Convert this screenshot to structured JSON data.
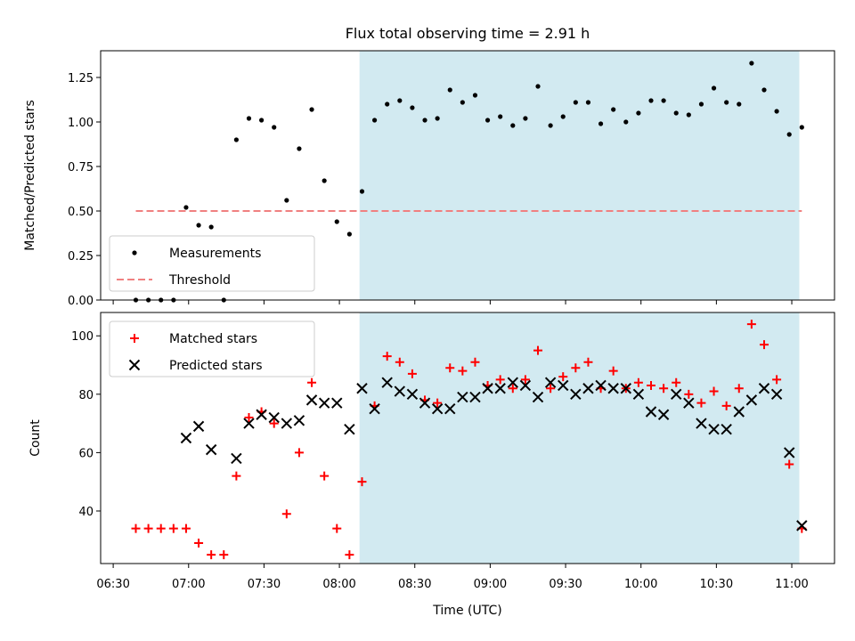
{
  "chart_data": {
    "title": "Flux total observing time = 2.91 h",
    "xlabel": "Time (UTC)",
    "x_ticks": [
      "06:30",
      "07:00",
      "07:30",
      "08:00",
      "08:30",
      "09:00",
      "09:30",
      "10:00",
      "10:30",
      "11:00"
    ],
    "x_range": [
      "06:25",
      "11:17"
    ],
    "shaded_interval": {
      "start": "08:08",
      "end": "11:03",
      "color": "#add8e6"
    },
    "panels": [
      {
        "type": "scatter",
        "ylabel": "Matched/Predicted stars",
        "ylim": [
          0,
          1.4
        ],
        "y_ticks": [
          "0.00",
          "0.25",
          "0.50",
          "0.75",
          "1.00",
          "1.25"
        ],
        "legend_placement": "lower-left",
        "series": [
          {
            "name": "Measurements",
            "marker": "dot",
            "color": "#000000",
            "points": [
              [
                "06:39",
                0
              ],
              [
                "06:44",
                0
              ],
              [
                "06:49",
                0
              ],
              [
                "06:54",
                0
              ],
              [
                "06:59",
                0.52
              ],
              [
                "07:04",
                0.42
              ],
              [
                "07:09",
                0.41
              ],
              [
                "07:14",
                0
              ],
              [
                "07:19",
                0.9
              ],
              [
                "07:24",
                1.02
              ],
              [
                "07:29",
                1.01
              ],
              [
                "07:34",
                0.97
              ],
              [
                "07:39",
                0.56
              ],
              [
                "07:44",
                0.85
              ],
              [
                "07:49",
                1.07
              ],
              [
                "07:54",
                0.67
              ],
              [
                "07:59",
                0.44
              ],
              [
                "08:04",
                0.37
              ],
              [
                "08:09",
                0.61
              ],
              [
                "08:14",
                1.01
              ],
              [
                "08:19",
                1.1
              ],
              [
                "08:24",
                1.12
              ],
              [
                "08:29",
                1.08
              ],
              [
                "08:34",
                1.01
              ],
              [
                "08:39",
                1.02
              ],
              [
                "08:44",
                1.18
              ],
              [
                "08:49",
                1.11
              ],
              [
                "08:54",
                1.15
              ],
              [
                "08:59",
                1.01
              ],
              [
                "09:04",
                1.03
              ],
              [
                "09:09",
                0.98
              ],
              [
                "09:14",
                1.02
              ],
              [
                "09:19",
                1.2
              ],
              [
                "09:24",
                0.98
              ],
              [
                "09:29",
                1.03
              ],
              [
                "09:34",
                1.11
              ],
              [
                "09:39",
                1.11
              ],
              [
                "09:44",
                0.99
              ],
              [
                "09:49",
                1.07
              ],
              [
                "09:54",
                1.0
              ],
              [
                "09:59",
                1.05
              ],
              [
                "10:04",
                1.12
              ],
              [
                "10:09",
                1.12
              ],
              [
                "10:14",
                1.05
              ],
              [
                "10:19",
                1.04
              ],
              [
                "10:24",
                1.1
              ],
              [
                "10:29",
                1.19
              ],
              [
                "10:34",
                1.11
              ],
              [
                "10:39",
                1.1
              ],
              [
                "10:44",
                1.33
              ],
              [
                "10:49",
                1.18
              ],
              [
                "10:54",
                1.06
              ],
              [
                "10:59",
                0.93
              ],
              [
                "11:04",
                0.97
              ]
            ]
          },
          {
            "name": "Threshold",
            "marker": "dashed-line",
            "color": "#f08080",
            "points": [
              [
                "06:39",
                0.5
              ],
              [
                "11:04",
                0.5
              ]
            ]
          }
        ]
      },
      {
        "type": "scatter",
        "ylabel": "Count",
        "ylim": [
          22,
          108
        ],
        "y_ticks": [
          "40",
          "60",
          "80",
          "100"
        ],
        "legend_placement": "upper-left",
        "series": [
          {
            "name": "Matched stars",
            "marker": "plus",
            "color": "#ff0000",
            "points": [
              [
                "06:39",
                34
              ],
              [
                "06:44",
                34
              ],
              [
                "06:49",
                34
              ],
              [
                "06:54",
                34
              ],
              [
                "06:59",
                34
              ],
              [
                "07:04",
                29
              ],
              [
                "07:09",
                25
              ],
              [
                "07:14",
                25
              ],
              [
                "07:19",
                52
              ],
              [
                "07:24",
                72
              ],
              [
                "07:29",
                74
              ],
              [
                "07:34",
                70
              ],
              [
                "07:39",
                39
              ],
              [
                "07:44",
                60
              ],
              [
                "07:49",
                84
              ],
              [
                "07:54",
                52
              ],
              [
                "07:59",
                34
              ],
              [
                "08:04",
                25
              ],
              [
                "08:09",
                50
              ],
              [
                "08:14",
                76
              ],
              [
                "08:19",
                93
              ],
              [
                "08:24",
                91
              ],
              [
                "08:29",
                87
              ],
              [
                "08:34",
                78
              ],
              [
                "08:39",
                77
              ],
              [
                "08:44",
                89
              ],
              [
                "08:49",
                88
              ],
              [
                "08:54",
                91
              ],
              [
                "08:59",
                83
              ],
              [
                "09:04",
                85
              ],
              [
                "09:09",
                82
              ],
              [
                "09:14",
                85
              ],
              [
                "09:19",
                95
              ],
              [
                "09:24",
                82
              ],
              [
                "09:29",
                86
              ],
              [
                "09:34",
                89
              ],
              [
                "09:39",
                91
              ],
              [
                "09:44",
                82
              ],
              [
                "09:49",
                88
              ],
              [
                "09:54",
                82
              ],
              [
                "09:59",
                84
              ],
              [
                "10:04",
                83
              ],
              [
                "10:09",
                82
              ],
              [
                "10:14",
                84
              ],
              [
                "10:19",
                80
              ],
              [
                "10:24",
                77
              ],
              [
                "10:29",
                81
              ],
              [
                "10:34",
                76
              ],
              [
                "10:39",
                82
              ],
              [
                "10:44",
                104
              ],
              [
                "10:49",
                97
              ],
              [
                "10:54",
                85
              ],
              [
                "10:59",
                56
              ],
              [
                "11:04",
                34
              ]
            ]
          },
          {
            "name": "Predicted stars",
            "marker": "x",
            "color": "#000000",
            "points": [
              [
                "06:59",
                65
              ],
              [
                "07:04",
                69
              ],
              [
                "07:09",
                61
              ],
              [
                "07:19",
                58
              ],
              [
                "07:24",
                70
              ],
              [
                "07:29",
                73
              ],
              [
                "07:34",
                72
              ],
              [
                "07:39",
                70
              ],
              [
                "07:44",
                71
              ],
              [
                "07:49",
                78
              ],
              [
                "07:54",
                77
              ],
              [
                "07:59",
                77
              ],
              [
                "08:04",
                68
              ],
              [
                "08:09",
                82
              ],
              [
                "08:14",
                75
              ],
              [
                "08:19",
                84
              ],
              [
                "08:24",
                81
              ],
              [
                "08:29",
                80
              ],
              [
                "08:34",
                77
              ],
              [
                "08:39",
                75
              ],
              [
                "08:44",
                75
              ],
              [
                "08:49",
                79
              ],
              [
                "08:54",
                79
              ],
              [
                "08:59",
                82
              ],
              [
                "09:04",
                82
              ],
              [
                "09:09",
                84
              ],
              [
                "09:14",
                83
              ],
              [
                "09:19",
                79
              ],
              [
                "09:24",
                84
              ],
              [
                "09:29",
                83
              ],
              [
                "09:34",
                80
              ],
              [
                "09:39",
                82
              ],
              [
                "09:44",
                83
              ],
              [
                "09:49",
                82
              ],
              [
                "09:54",
                82
              ],
              [
                "09:59",
                80
              ],
              [
                "10:04",
                74
              ],
              [
                "10:09",
                73
              ],
              [
                "10:14",
                80
              ],
              [
                "10:19",
                77
              ],
              [
                "10:24",
                70
              ],
              [
                "10:29",
                68
              ],
              [
                "10:34",
                68
              ],
              [
                "10:39",
                74
              ],
              [
                "10:44",
                78
              ],
              [
                "10:49",
                82
              ],
              [
                "10:54",
                80
              ],
              [
                "10:59",
                60
              ],
              [
                "11:04",
                35
              ]
            ]
          }
        ]
      }
    ]
  }
}
